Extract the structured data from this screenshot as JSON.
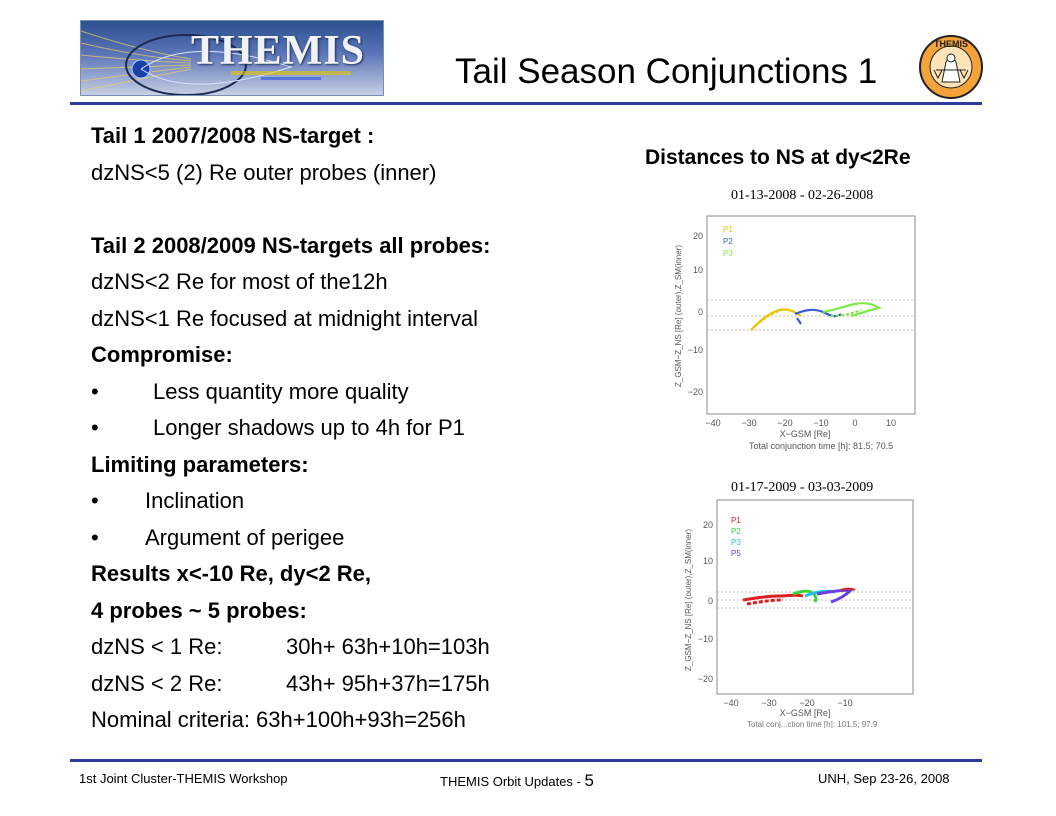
{
  "header": {
    "logo_text": "THEMIS",
    "title": "Tail Season Conjunctions 1",
    "seal_text": "THEMIS"
  },
  "body": {
    "l1": "Tail 1 2007/2008 NS-target :",
    "l2": "dzNS<5 (2) Re outer probes (inner)",
    "l3": "Tail 2 2008/2009 NS-targets all probes:",
    "l4": "dzNS<2 Re for most of the12h",
    "l5": "dzNS<1 Re focused at midnight interval",
    "l6": "Compromise:",
    "bullet": "•",
    "l7": "Less quantity more quality",
    "l8": "Longer shadows up to 4h for P1",
    "l9": "Limiting parameters:",
    "l10": "Inclination",
    "l11": "Argument of perigee",
    "l12": "Results x<-10 Re, dy<2 Re,",
    "l13": "4 probes ~  5 probes:",
    "l14a": "dzNS < 1 Re:",
    "l14b": "30h+ 63h+10h=103h",
    "l15a": "dzNS < 2 Re:",
    "l15b": "43h+ 95h+37h=175h",
    "l16": "Nominal criteria: 63h+100h+93h=256h"
  },
  "right": {
    "title": "Distances to NS at dy<2Re",
    "cap1": "01-13-2008 - 02-26-2008",
    "cap2": "01-17-2009 - 03-03-2009",
    "plot1": {
      "ylabel": "Z_GSM−Z_NS [Re] (outer),Z_SM(inner)",
      "xlabel": "X−GSM [Re]",
      "footer": "Total conjunction time [h]:  81.5;  70.5",
      "legend": [
        "P1",
        "P2",
        "P3"
      ],
      "legend_colors": [
        "#e8c400",
        "#3a5be0",
        "#7ee84a"
      ],
      "yticks": [
        "20",
        "10",
        "0",
        "−10",
        "−20"
      ],
      "xticks": [
        "−40",
        "−30",
        "−20",
        "−10",
        "0",
        "10"
      ]
    },
    "plot2": {
      "ylabel": "Z_GSM−Z_NS [Re] (outer),Z_SM(inner)",
      "xlabel": "X−GSM [Re]",
      "footer": "Total conj...ction time [h]:  101.5;  97.9",
      "legend": [
        "P1",
        "P2",
        "P3",
        "P5"
      ],
      "legend_colors": [
        "#e02020",
        "#36d436",
        "#20c0e0",
        "#6a40e0"
      ],
      "yticks": [
        "20",
        "10",
        "0",
        "−10",
        "−20"
      ],
      "xticks": [
        "−40",
        "−30",
        "−20",
        "−10"
      ]
    }
  },
  "footer": {
    "left": "1st Joint Cluster-THEMIS Workshop",
    "center": "THEMIS Orbit Updates - ",
    "page": "5",
    "right": "UNH, Sep 23-26, 2008"
  },
  "colors": {
    "rule": "#2c3aa0"
  }
}
